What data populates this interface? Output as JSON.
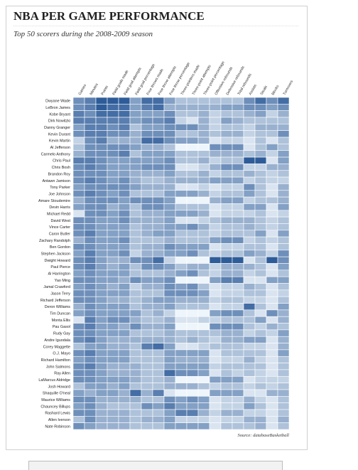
{
  "chart_data": {
    "type": "heatmap",
    "title": "NBA PER GAME PERFORMANCE",
    "subtitle": "Top 50 scorers during the 2008-2009 season",
    "source": "Source: databaseBasketball",
    "categories": [
      "Games",
      "Minutes",
      "Points",
      "Field goals made",
      "Field goal attempts",
      "Field goal percentage",
      "Free throws made",
      "Free throw attempts",
      "Free throw percentage",
      "Three-pointers made",
      "Three-point attempts",
      "Three-point percentage",
      "Offensive rebounds",
      "Defensive rebounds",
      "Total rebounds",
      "Assists",
      "Steals",
      "Blocks",
      "Turnovers"
    ],
    "rows": [
      "Dwyane Wade",
      "LeBron James",
      "Kobe Bryant",
      "Dirk Nowitzki",
      "Danny Granger",
      "Kevin Durant",
      "Kevin Martin",
      "Al Jefferson",
      "Carmelo Anthony",
      "Chris Paul",
      "Chris Bosh",
      "Brandon Roy",
      "Antawn Jamison",
      "Tony Parker",
      "Joe Johnson",
      "Amare Stoudemire",
      "Devin Harris",
      "Michael Redd",
      "David West",
      "Vince Carter",
      "Caron Butler",
      "Zachary Randolph",
      "Ben Gordon",
      "Stephen Jackson",
      "Dwight Howard",
      "Paul Pierce",
      "Al Harrington",
      "Yao Ming",
      "Jamal Crawford",
      "Jason Terry",
      "Richard Jefferson",
      "Deron Williams",
      "Tim Duncan",
      "Monta Ellis",
      "Pau Gasol",
      "Rudy Gay",
      "Andre Iguodala",
      "Corey Maggette",
      "O.J. Mayo",
      "Richard Hamilton",
      "John Salmons",
      "Ray Allen",
      "LaMarcus Aldridge",
      "Josh Howard",
      "Shaquille O'neal",
      "Maurice Williams",
      "Chauncey Billups",
      "Rashard Lewis",
      "Allen Iverson",
      "Nate Robinson"
    ],
    "value_range": [
      0,
      9
    ],
    "color_low": "#eef5fb",
    "color_high": "#2e5c99",
    "values": [
      [
        6,
        7,
        9,
        9,
        9,
        5,
        8,
        8,
        5,
        3,
        3,
        3,
        3,
        3,
        3,
        6,
        8,
        6,
        8
      ],
      [
        6,
        7,
        9,
        8,
        8,
        5,
        7,
        8,
        4,
        4,
        4,
        4,
        4,
        5,
        5,
        6,
        6,
        5,
        6
      ],
      [
        7,
        6,
        8,
        8,
        8,
        5,
        5,
        5,
        6,
        3,
        3,
        4,
        2,
        3,
        3,
        4,
        5,
        2,
        4
      ],
      [
        7,
        7,
        7,
        7,
        7,
        5,
        6,
        6,
        7,
        2,
        1,
        4,
        2,
        5,
        4,
        3,
        3,
        3,
        3
      ],
      [
        5,
        7,
        7,
        6,
        7,
        3,
        5,
        5,
        6,
        6,
        6,
        4,
        2,
        3,
        3,
        2,
        4,
        4,
        4
      ],
      [
        6,
        7,
        7,
        6,
        6,
        4,
        6,
        6,
        6,
        3,
        3,
        4,
        3,
        4,
        4,
        2,
        3,
        3,
        6
      ],
      [
        2,
        6,
        7,
        4,
        4,
        4,
        8,
        8,
        6,
        5,
        5,
        4,
        1,
        2,
        2,
        1,
        3,
        1,
        3
      ],
      [
        3,
        6,
        6,
        6,
        6,
        5,
        4,
        4,
        3,
        0,
        0,
        0,
        6,
        6,
        6,
        1,
        3,
        5,
        3
      ],
      [
        4,
        6,
        6,
        6,
        7,
        3,
        5,
        5,
        5,
        3,
        3,
        3,
        4,
        4,
        4,
        3,
        4,
        2,
        5
      ],
      [
        7,
        7,
        6,
        5,
        5,
        5,
        5,
        5,
        6,
        3,
        3,
        4,
        2,
        3,
        3,
        9,
        9,
        1,
        5
      ],
      [
        6,
        7,
        6,
        5,
        5,
        5,
        6,
        6,
        6,
        1,
        1,
        2,
        4,
        6,
        6,
        2,
        2,
        4,
        4
      ],
      [
        6,
        6,
        6,
        5,
        5,
        4,
        4,
        4,
        5,
        3,
        3,
        4,
        2,
        3,
        3,
        4,
        3,
        2,
        3
      ],
      [
        6,
        7,
        6,
        5,
        6,
        4,
        3,
        3,
        4,
        4,
        4,
        4,
        5,
        5,
        5,
        2,
        3,
        2,
        2
      ],
      [
        5,
        6,
        6,
        6,
        6,
        5,
        4,
        4,
        4,
        1,
        1,
        2,
        1,
        2,
        2,
        6,
        3,
        1,
        4
      ],
      [
        6,
        7,
        6,
        5,
        6,
        3,
        3,
        3,
        5,
        5,
        5,
        4,
        2,
        3,
        3,
        5,
        3,
        1,
        4
      ],
      [
        4,
        6,
        6,
        6,
        5,
        6,
        6,
        6,
        5,
        0,
        0,
        0,
        4,
        5,
        5,
        2,
        3,
        3,
        4
      ],
      [
        5,
        6,
        6,
        4,
        5,
        3,
        6,
        6,
        5,
        3,
        3,
        3,
        1,
        2,
        2,
        5,
        5,
        1,
        5
      ],
      [
        1,
        6,
        6,
        5,
        6,
        3,
        4,
        4,
        5,
        5,
        5,
        4,
        1,
        2,
        2,
        2,
        3,
        1,
        2
      ],
      [
        6,
        6,
        5,
        5,
        6,
        4,
        4,
        4,
        5,
        1,
        1,
        2,
        3,
        4,
        4,
        4,
        3,
        2,
        3
      ],
      [
        6,
        6,
        5,
        5,
        5,
        3,
        4,
        4,
        5,
        5,
        6,
        4,
        2,
        3,
        3,
        4,
        3,
        2,
        3
      ],
      [
        6,
        7,
        5,
        5,
        5,
        3,
        4,
        5,
        5,
        3,
        3,
        3,
        2,
        3,
        3,
        3,
        5,
        1,
        5
      ],
      [
        4,
        6,
        5,
        5,
        6,
        3,
        3,
        3,
        4,
        3,
        3,
        3,
        5,
        6,
        6,
        2,
        3,
        2,
        3
      ],
      [
        6,
        6,
        5,
        5,
        5,
        3,
        4,
        4,
        6,
        5,
        5,
        5,
        1,
        2,
        2,
        3,
        3,
        1,
        3
      ],
      [
        5,
        7,
        5,
        5,
        6,
        2,
        4,
        4,
        5,
        5,
        6,
        3,
        2,
        3,
        3,
        5,
        4,
        2,
        6
      ],
      [
        6,
        7,
        5,
        4,
        4,
        6,
        6,
        8,
        2,
        0,
        0,
        0,
        9,
        9,
        9,
        1,
        3,
        9,
        6
      ],
      [
        6,
        7,
        5,
        4,
        5,
        3,
        6,
        6,
        5,
        3,
        4,
        4,
        2,
        4,
        4,
        4,
        3,
        1,
        5
      ],
      [
        5,
        6,
        5,
        5,
        5,
        3,
        3,
        3,
        4,
        5,
        6,
        3,
        2,
        4,
        4,
        2,
        3,
        1,
        3
      ],
      [
        6,
        6,
        5,
        5,
        4,
        6,
        5,
        5,
        6,
        0,
        0,
        0,
        5,
        7,
        7,
        1,
        1,
        5,
        5
      ],
      [
        5,
        6,
        5,
        4,
        5,
        2,
        4,
        4,
        6,
        5,
        6,
        3,
        1,
        2,
        2,
        4,
        3,
        1,
        3
      ],
      [
        6,
        6,
        5,
        5,
        5,
        3,
        3,
        3,
        6,
        6,
        6,
        5,
        1,
        2,
        2,
        3,
        3,
        1,
        2
      ],
      [
        6,
        6,
        5,
        4,
        4,
        3,
        4,
        5,
        5,
        4,
        4,
        4,
        2,
        3,
        3,
        2,
        2,
        1,
        3
      ],
      [
        4,
        6,
        5,
        5,
        5,
        3,
        4,
        4,
        5,
        3,
        3,
        3,
        1,
        2,
        2,
        8,
        3,
        1,
        5
      ],
      [
        5,
        6,
        5,
        5,
        5,
        5,
        3,
        4,
        2,
        0,
        0,
        0,
        5,
        6,
        6,
        3,
        1,
        6,
        4
      ],
      [
        1,
        7,
        5,
        6,
        6,
        4,
        3,
        3,
        4,
        1,
        1,
        2,
        2,
        3,
        3,
        3,
        5,
        1,
        4
      ],
      [
        6,
        7,
        5,
        5,
        4,
        6,
        4,
        4,
        5,
        0,
        0,
        0,
        6,
        6,
        6,
        3,
        2,
        4,
        3
      ],
      [
        6,
        6,
        5,
        5,
        5,
        3,
        3,
        3,
        4,
        3,
        3,
        3,
        3,
        4,
        4,
        2,
        3,
        2,
        5
      ],
      [
        6,
        7,
        5,
        4,
        4,
        4,
        4,
        4,
        4,
        3,
        4,
        3,
        2,
        4,
        4,
        5,
        5,
        1,
        4
      ],
      [
        3,
        5,
        5,
        4,
        4,
        3,
        7,
        8,
        5,
        1,
        1,
        2,
        3,
        3,
        3,
        2,
        2,
        1,
        4
      ],
      [
        6,
        7,
        5,
        5,
        5,
        3,
        3,
        3,
        5,
        5,
        5,
        5,
        1,
        3,
        3,
        3,
        3,
        1,
        5
      ],
      [
        5,
        6,
        5,
        5,
        5,
        3,
        3,
        3,
        5,
        4,
        4,
        4,
        1,
        2,
        2,
        4,
        2,
        1,
        3
      ],
      [
        6,
        7,
        5,
        4,
        4,
        4,
        3,
        3,
        5,
        5,
        5,
        5,
        2,
        3,
        3,
        3,
        3,
        1,
        3
      ],
      [
        6,
        6,
        5,
        4,
        4,
        4,
        3,
        3,
        8,
        6,
        6,
        5,
        1,
        3,
        2,
        3,
        2,
        1,
        3
      ],
      [
        6,
        6,
        5,
        5,
        5,
        4,
        3,
        3,
        4,
        0,
        0,
        0,
        5,
        5,
        5,
        1,
        2,
        2,
        2
      ],
      [
        3,
        5,
        5,
        4,
        5,
        3,
        3,
        3,
        4,
        4,
        4,
        3,
        2,
        3,
        3,
        2,
        3,
        2,
        3
      ],
      [
        5,
        4,
        5,
        5,
        4,
        8,
        4,
        7,
        1,
        0,
        0,
        0,
        5,
        5,
        5,
        1,
        1,
        4,
        4
      ],
      [
        6,
        6,
        4,
        4,
        4,
        4,
        3,
        3,
        6,
        5,
        6,
        5,
        1,
        2,
        2,
        4,
        2,
        1,
        3
      ],
      [
        5,
        6,
        4,
        3,
        3,
        3,
        6,
        5,
        7,
        5,
        5,
        5,
        1,
        2,
        2,
        5,
        3,
        1,
        3
      ],
      [
        6,
        6,
        4,
        4,
        4,
        3,
        3,
        3,
        5,
        7,
        7,
        4,
        2,
        4,
        4,
        2,
        2,
        1,
        3
      ],
      [
        3,
        6,
        4,
        4,
        4,
        3,
        4,
        4,
        5,
        2,
        2,
        2,
        1,
        2,
        2,
        4,
        4,
        1,
        4
      ],
      [
        6,
        5,
        4,
        4,
        4,
        3,
        3,
        3,
        5,
        5,
        5,
        5,
        1,
        3,
        3,
        3,
        4,
        1,
        3
      ]
    ]
  }
}
